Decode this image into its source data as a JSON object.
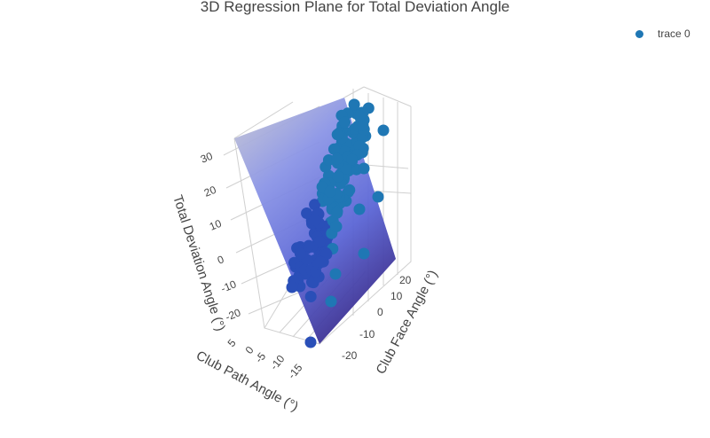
{
  "chart_data": {
    "type": "scatter3d",
    "title": "3D Regression Plane for Total Deviation Angle",
    "legend": {
      "placement": "top-right",
      "entries": [
        "trace 0"
      ]
    },
    "series": [
      {
        "name": "trace 0",
        "color": "#1f77b4",
        "marker": "circle"
      }
    ],
    "surface": {
      "type": "regression-plane",
      "colorscale": [
        "#3b2e8f",
        "#5b66d6",
        "#8a94e6",
        "#c9c9d2"
      ]
    },
    "axes": {
      "x": {
        "title": "Club Path Angle (°)",
        "ticks": [
          "-15",
          "-10",
          "-5",
          "0",
          "5"
        ]
      },
      "y": {
        "title": "Club Face Angle (°)",
        "ticks": [
          "-20",
          "-10",
          "0",
          "10",
          "20"
        ]
      },
      "z": {
        "title": "Total Deviation Angle (°)",
        "ticks": [
          "-20",
          "-10",
          "0",
          "10",
          "20",
          "30"
        ]
      }
    },
    "grid": true
  }
}
